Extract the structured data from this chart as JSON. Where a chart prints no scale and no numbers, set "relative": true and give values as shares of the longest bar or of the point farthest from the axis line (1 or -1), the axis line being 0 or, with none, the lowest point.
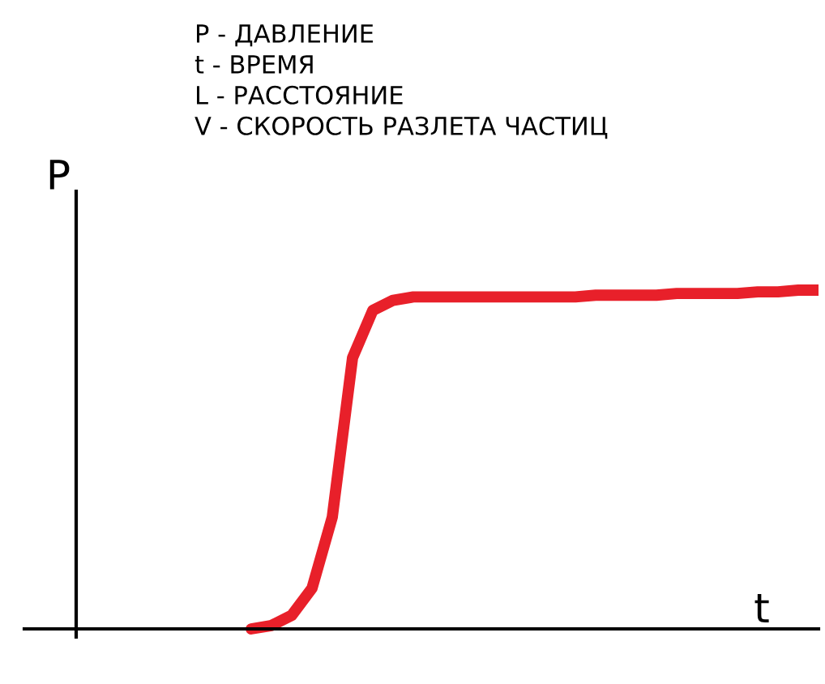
{
  "chart_data": {
    "type": "line",
    "relative": true,
    "xlabel": "t",
    "ylabel": "P",
    "annotations": [
      "P - ДАВЛЕНИЕ",
      "t - ВРЕМЯ",
      "L - РАССТОЯНИЕ",
      "V - СКОРОСТЬ РАЗЛЕТА ЧАСТИЦ"
    ],
    "categories": [
      null,
      null,
      null,
      null,
      null,
      null,
      null,
      null,
      null,
      null,
      null,
      null,
      null,
      null,
      null,
      null,
      null,
      null,
      null,
      null,
      null,
      null,
      null,
      null,
      null,
      null,
      null,
      null,
      null
    ],
    "series": [
      {
        "color": "#e8202a",
        "values": [
          0,
          0.01,
          0.04,
          0.12,
          0.33,
          0.8,
          0.94,
          0.97,
          0.98,
          0.98,
          0.98,
          0.98,
          0.98,
          0.98,
          0.98,
          0.98,
          0.98,
          0.985,
          0.985,
          0.985,
          0.985,
          0.99,
          0.99,
          0.99,
          0.99,
          0.995,
          0.995,
          1,
          1
        ]
      }
    ],
    "grid": false,
    "legend": false,
    "marker": "none",
    "line_style": "solid"
  }
}
